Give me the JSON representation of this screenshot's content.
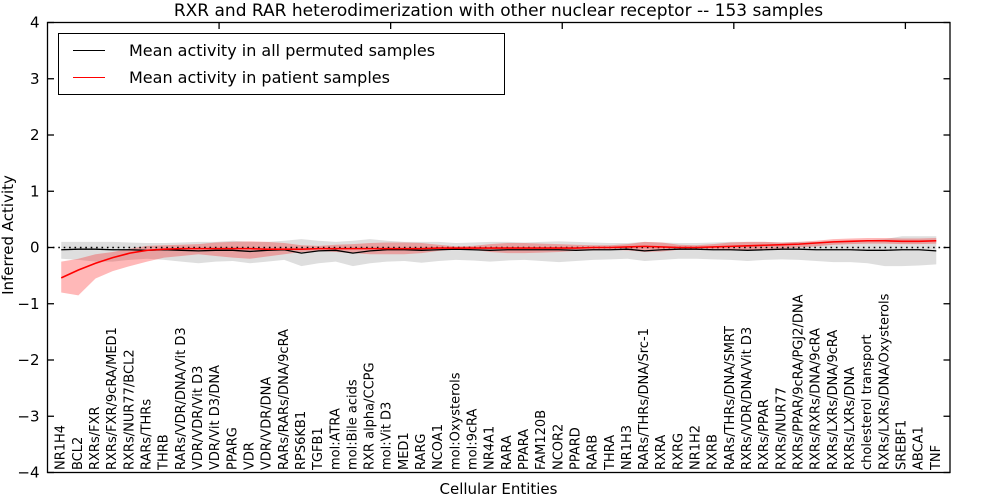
{
  "chart_data": {
    "type": "line",
    "title": "RXR and RAR heterodimerization with other nuclear receptor -- 153 samples",
    "xlabel": "Cellular Entities",
    "ylabel": "Inferred Activity",
    "ylim": [
      -4,
      4
    ],
    "yticks": [
      -4,
      -3,
      -2,
      -1,
      0,
      1,
      2,
      3,
      4
    ],
    "ytick_labels": [
      "−4",
      "−3",
      "−2",
      "−1",
      "0",
      "1",
      "2",
      "3",
      "4"
    ],
    "xlim": [
      0,
      52.6
    ],
    "xticks": [
      10,
      20,
      30,
      40,
      50
    ],
    "category_offset": 0.8,
    "grid": false,
    "legend_position": "upper left",
    "zero_line": {
      "style": "dotted",
      "color": "#000000",
      "y": 0
    },
    "categories": [
      "NR1H4",
      "BCL2",
      "RXRs/FXR",
      "RXRs/FXR/9cRA/MED1",
      "RXRs/NUR77/BCL2",
      "RARs/THRs",
      "THRB",
      "RARs/VDR/DNA/Vit D3",
      "VDR/VDR/Vit D3",
      "VDR/Vit D3/DNA",
      "PPARG",
      "VDR",
      "VDR/VDR/DNA",
      "RARs/RARs/DNA/9cRA",
      "RPS6KB1",
      "TGFB1",
      "mol:ATRA",
      "mol:Bile acids",
      "RXR alpha/CCPG",
      "mol:Vit D3",
      "MED1",
      "RARG",
      "NCOA1",
      "mol:Oxysterols",
      "mol:9cRA",
      "NR4A1",
      "RARA",
      "PPARA",
      "FAM120B",
      "NCOR2",
      "PPARD",
      "RARB",
      "THRA",
      "NR1H3",
      "RARs/THRs/DNA/Src-1",
      "RXRA",
      "RXRG",
      "NR1H2",
      "RXRB",
      "RARs/THRs/DNA/SMRT",
      "RXRs/VDR/DNA/Vit D3",
      "RXRs/PPAR",
      "RXRs/NUR77",
      "RXRs/PPAR/9cRA/PGJ2/DNA",
      "RXRs/RXRs/DNA/9cRA",
      "RXRs/LXRs/DNA/9cRA",
      "RXRs/LXRs/DNA",
      "cholesterol transport",
      "RXRs/LXRs/DNA/Oxysterols",
      "SREBF1",
      "ABCA1",
      "TNF"
    ],
    "series": [
      {
        "name": "Mean activity in all permuted samples",
        "color": "#000000",
        "values": [
          -0.04,
          -0.03,
          -0.03,
          -0.04,
          -0.04,
          -0.05,
          -0.04,
          -0.05,
          -0.06,
          -0.05,
          -0.05,
          -0.07,
          -0.05,
          -0.04,
          -0.1,
          -0.06,
          -0.05,
          -0.1,
          -0.06,
          -0.04,
          -0.04,
          -0.05,
          -0.04,
          -0.03,
          -0.04,
          -0.05,
          -0.04,
          -0.04,
          -0.04,
          -0.04,
          -0.05,
          -0.04,
          -0.04,
          -0.03,
          -0.06,
          -0.04,
          -0.03,
          -0.03,
          -0.04,
          -0.04,
          -0.05,
          -0.04,
          -0.03,
          -0.03,
          -0.04,
          -0.04,
          -0.04,
          -0.05,
          -0.05,
          -0.04,
          -0.04,
          -0.06
        ],
        "band": {
          "color": "#000000",
          "opacity": 0.13,
          "upper": [
            0.1,
            0.1,
            0.1,
            0.1,
            0.09,
            0.08,
            0.08,
            0.09,
            0.1,
            0.1,
            0.12,
            0.1,
            0.1,
            0.12,
            0.15,
            0.12,
            0.1,
            0.12,
            0.15,
            0.12,
            0.1,
            0.1,
            0.1,
            0.08,
            0.09,
            0.1,
            0.1,
            0.09,
            0.1,
            0.11,
            0.1,
            0.09,
            0.08,
            0.08,
            0.1,
            0.09,
            0.08,
            0.08,
            0.09,
            0.1,
            0.1,
            0.1,
            0.09,
            0.1,
            0.1,
            0.12,
            0.12,
            0.13,
            0.15,
            0.2,
            0.2,
            0.2
          ],
          "lower": [
            -0.2,
            -0.22,
            -0.25,
            -0.25,
            -0.22,
            -0.2,
            -0.22,
            -0.25,
            -0.28,
            -0.25,
            -0.24,
            -0.28,
            -0.25,
            -0.22,
            -0.33,
            -0.28,
            -0.25,
            -0.33,
            -0.28,
            -0.25,
            -0.24,
            -0.27,
            -0.24,
            -0.22,
            -0.23,
            -0.25,
            -0.23,
            -0.22,
            -0.24,
            -0.26,
            -0.24,
            -0.22,
            -0.21,
            -0.2,
            -0.24,
            -0.22,
            -0.2,
            -0.2,
            -0.21,
            -0.22,
            -0.24,
            -0.22,
            -0.21,
            -0.22,
            -0.24,
            -0.26,
            -0.26,
            -0.28,
            -0.33,
            -0.33,
            -0.32,
            -0.3
          ]
        }
      },
      {
        "name": "Mean activity in patient samples",
        "color": "#ff0000",
        "values": [
          -0.54,
          -0.4,
          -0.28,
          -0.18,
          -0.1,
          -0.05,
          -0.03,
          -0.02,
          -0.02,
          -0.02,
          -0.02,
          -0.02,
          -0.03,
          -0.03,
          -0.03,
          -0.02,
          -0.02,
          -0.02,
          -0.02,
          -0.02,
          -0.02,
          -0.02,
          -0.01,
          -0.01,
          -0.01,
          -0.01,
          -0.01,
          -0.01,
          -0.01,
          -0.01,
          -0.01,
          0.0,
          0.0,
          0.01,
          0.02,
          0.01,
          0.0,
          0.0,
          0.01,
          0.02,
          0.03,
          0.04,
          0.05,
          0.06,
          0.08,
          0.1,
          0.11,
          0.12,
          0.12,
          0.11,
          0.11,
          0.12
        ],
        "band": {
          "color": "#ff0000",
          "opacity": 0.28,
          "upper": [
            -0.25,
            -0.2,
            -0.12,
            -0.08,
            -0.02,
            0.03,
            0.04,
            0.05,
            0.06,
            0.09,
            0.1,
            0.11,
            0.1,
            0.08,
            0.04,
            0.03,
            0.05,
            0.06,
            0.08,
            0.09,
            0.09,
            0.08,
            0.05,
            0.02,
            0.03,
            0.06,
            0.08,
            0.08,
            0.07,
            0.06,
            0.05,
            0.04,
            0.04,
            0.06,
            0.1,
            0.09,
            0.05,
            0.04,
            0.06,
            0.09,
            0.1,
            0.1,
            0.09,
            0.1,
            0.12,
            0.15,
            0.16,
            0.17,
            0.17,
            0.16,
            0.16,
            0.17
          ],
          "lower": [
            -0.8,
            -0.85,
            -0.55,
            -0.42,
            -0.33,
            -0.25,
            -0.18,
            -0.15,
            -0.12,
            -0.15,
            -0.18,
            -0.2,
            -0.16,
            -0.12,
            -0.08,
            -0.06,
            -0.08,
            -0.1,
            -0.12,
            -0.12,
            -0.12,
            -0.1,
            -0.06,
            -0.03,
            -0.04,
            -0.08,
            -0.1,
            -0.1,
            -0.09,
            -0.08,
            -0.06,
            -0.05,
            -0.04,
            -0.05,
            -0.08,
            -0.07,
            -0.04,
            -0.04,
            -0.04,
            -0.05,
            -0.04,
            -0.03,
            -0.02,
            0.0,
            0.02,
            0.05,
            0.06,
            0.07,
            0.07,
            0.06,
            0.06,
            0.07
          ]
        }
      }
    ]
  }
}
